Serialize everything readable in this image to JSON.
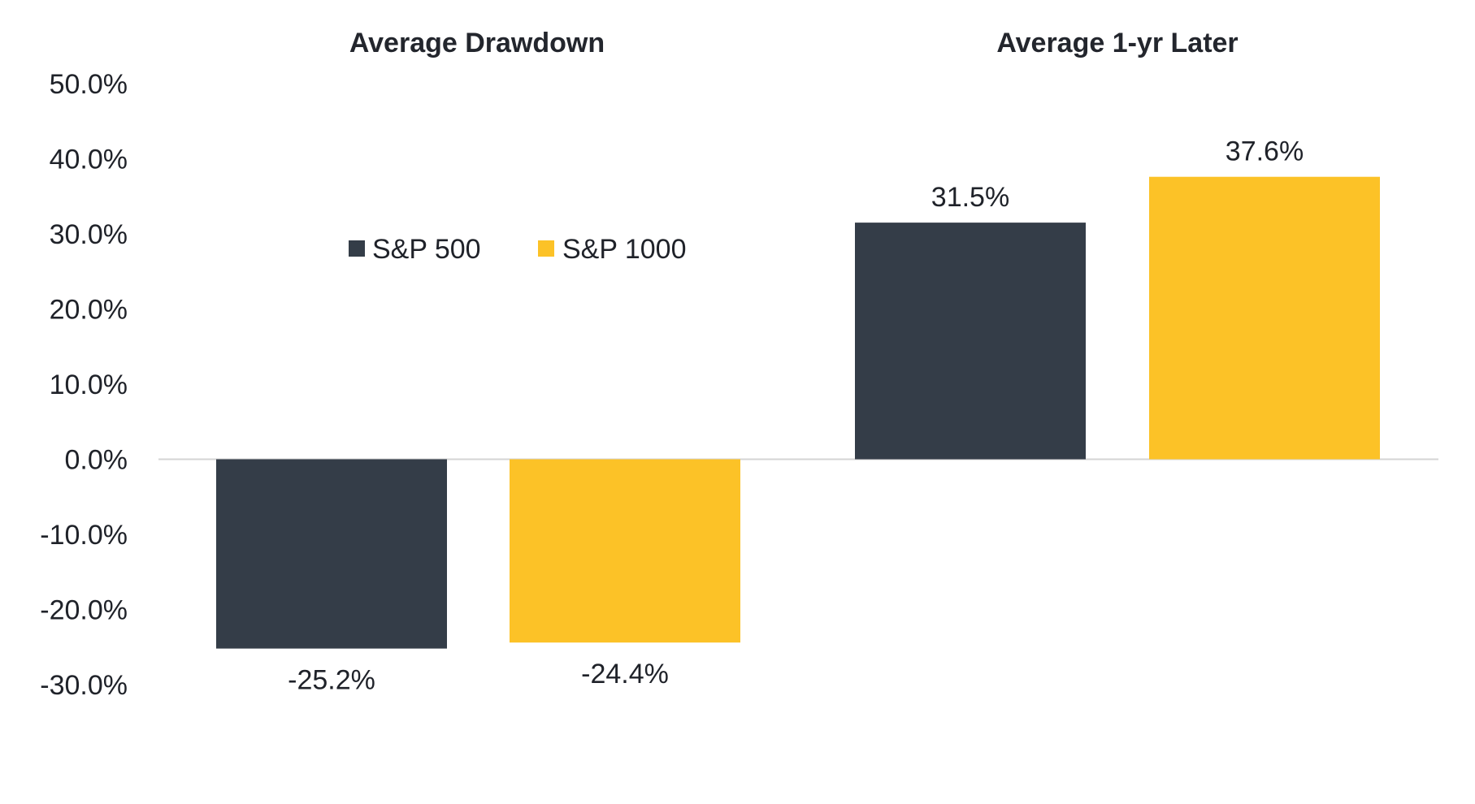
{
  "chart_data": {
    "type": "bar",
    "title": "",
    "xlabel": "",
    "ylabel": "",
    "categories": [
      "Average Drawdown",
      "Average 1-yr Later"
    ],
    "series": [
      {
        "name": "S&P 500",
        "color": "#343d48",
        "values": [
          -25.2,
          31.5
        ],
        "labels": [
          "-25.2%",
          "31.5%"
        ]
      },
      {
        "name": "S&P 1000",
        "color": "#fcc227",
        "values": [
          -24.4,
          37.6
        ],
        "labels": [
          "-24.4%",
          "37.6%"
        ]
      }
    ],
    "ylim": [
      -30,
      50
    ],
    "yticks": [
      50,
      40,
      30,
      20,
      10,
      0,
      -10,
      -20,
      -30
    ],
    "ytick_labels": [
      "50.0%",
      "40.0%",
      "30.0%",
      "20.0%",
      "10.0%",
      "0.0%",
      "-10.0%",
      "-20.0%",
      "-30.0%"
    ],
    "grid": false,
    "legend_position": "top-left"
  }
}
